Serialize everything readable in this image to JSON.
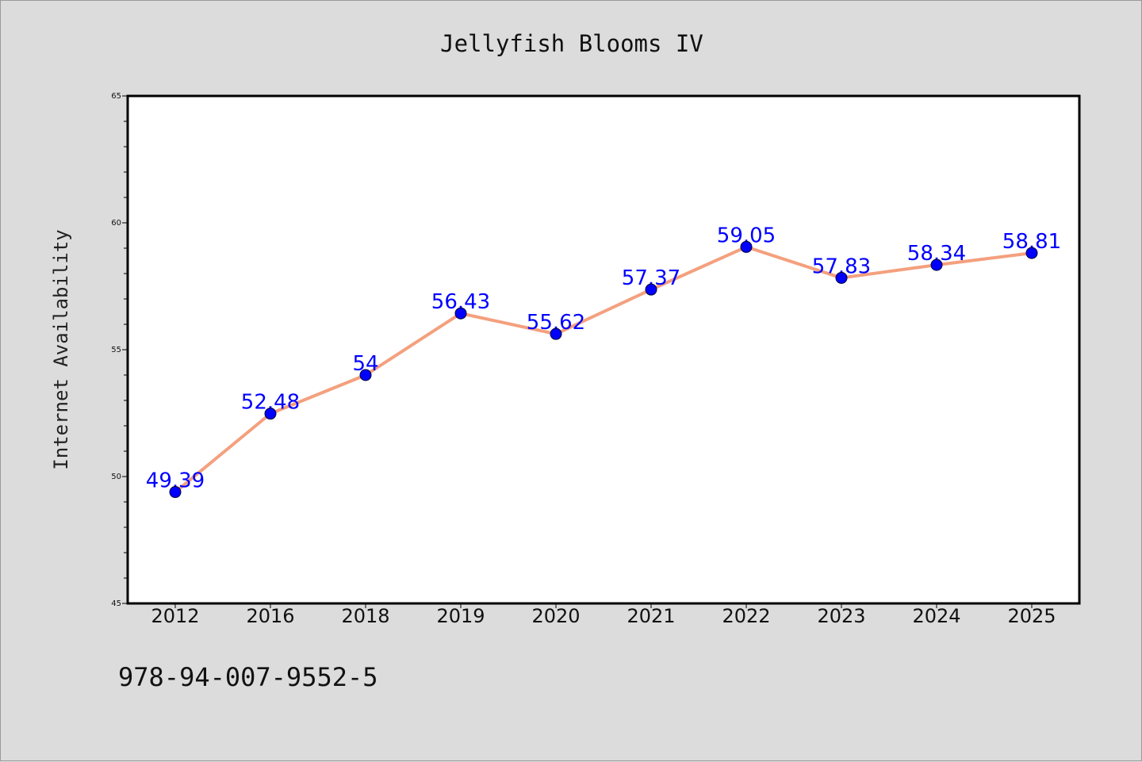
{
  "colors": {
    "background": "#dcdcdc",
    "plot_background": "#ffffff",
    "line": "#f4a07e",
    "marker": "#0000ff",
    "data_label": "#0000ff"
  },
  "footer_text": "978-94-007-9552-5",
  "chart_data": {
    "type": "line",
    "title": "Jellyfish Blooms IV",
    "xlabel": "",
    "ylabel": "Internet Availability",
    "categories": [
      "2012",
      "2016",
      "2018",
      "2019",
      "2020",
      "2021",
      "2022",
      "2023",
      "2024",
      "2025"
    ],
    "series": [
      {
        "values": [
          49.39,
          52.48,
          54,
          56.43,
          55.62,
          57.37,
          59.05,
          57.83,
          58.34,
          58.81
        ],
        "labels": [
          "49.39",
          "52.48",
          "54",
          "56.43",
          "55.62",
          "57.37",
          "59.05",
          "57.83",
          "58.34",
          "58.81"
        ]
      }
    ],
    "ylim": [
      45,
      65
    ],
    "yticks": [
      45,
      50,
      55,
      60,
      65
    ],
    "yminor_step": 1,
    "grid": false,
    "legend": "none"
  }
}
